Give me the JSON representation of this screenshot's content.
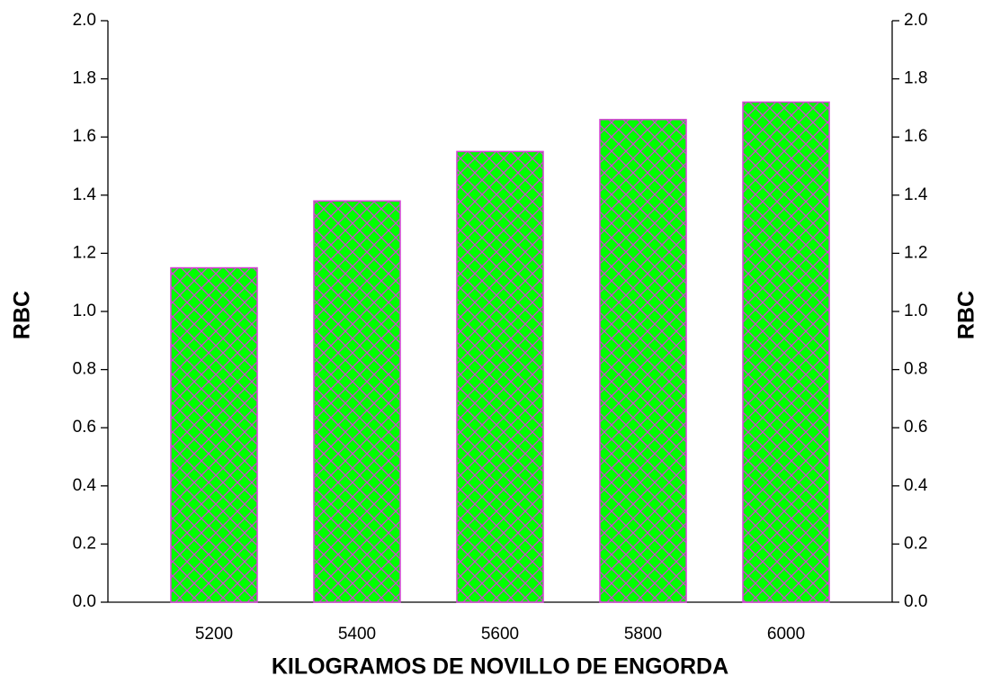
{
  "chart_data": {
    "type": "bar",
    "xlabel": "KILOGRAMOS DE NOVILLO DE ENGORDA",
    "ylabel": "RBC",
    "y2label": "RBC",
    "categories": [
      "5200",
      "5400",
      "5600",
      "5800",
      "6000"
    ],
    "values": [
      1.15,
      1.38,
      1.55,
      1.66,
      1.72
    ],
    "color": "#00ff00",
    "hatch_color": "#d63fd6",
    "ylim": [
      0,
      2.0
    ],
    "yticks": [
      {
        "value": 0,
        "label": "0.0"
      },
      {
        "value": 0.2,
        "label": "0.2"
      },
      {
        "value": 0.4,
        "label": "0.4"
      },
      {
        "value": 0.6,
        "label": "0.6"
      },
      {
        "value": 0.8,
        "label": "0.8"
      },
      {
        "value": 1.0,
        "label": "1.0"
      },
      {
        "value": 1.2,
        "label": "1.2"
      },
      {
        "value": 1.4,
        "label": "1.4"
      },
      {
        "value": 1.6,
        "label": "1.6"
      },
      {
        "value": 1.8,
        "label": "1.8"
      },
      {
        "value": 2.0,
        "label": "2.0"
      }
    ],
    "y2lim": [
      0,
      2.0
    ],
    "y2ticks": [
      {
        "value": 0,
        "label": "0.0"
      },
      {
        "value": 0.2,
        "label": "0.2"
      },
      {
        "value": 0.4,
        "label": "0.4"
      },
      {
        "value": 0.6,
        "label": "0.6"
      },
      {
        "value": 0.8,
        "label": "0.8"
      },
      {
        "value": 1.0,
        "label": "1.0"
      },
      {
        "value": 1.2,
        "label": "1.2"
      },
      {
        "value": 1.4,
        "label": "1.4"
      },
      {
        "value": 1.6,
        "label": "1.6"
      },
      {
        "value": 1.8,
        "label": "1.8"
      },
      {
        "value": 2.0,
        "label": "2.0"
      }
    ],
    "grid": false
  }
}
